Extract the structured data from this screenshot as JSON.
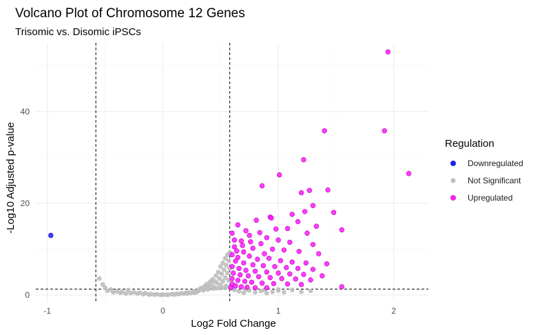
{
  "chart_data": {
    "type": "scatter",
    "title": "Volcano Plot of Chromosome 12 Genes",
    "subtitle": "Trisomic vs. Disomic iPSCs",
    "xlabel": "Log2 Fold Change",
    "ylabel": "-Log10 Adjusted p-value",
    "xlim": [
      -1.1,
      2.3
    ],
    "ylim": [
      -1.5,
      55
    ],
    "x_ticks": [
      -1,
      0,
      1,
      2
    ],
    "x_tick_labels": [
      "-1",
      "0",
      "1",
      "2"
    ],
    "y_ticks": [
      0,
      20,
      40
    ],
    "y_tick_labels": [
      "0",
      "20",
      "40"
    ],
    "grid": true,
    "thresholds": {
      "fold_change": [
        -0.58,
        0.58
      ],
      "neg_log10_padj": 1.3
    },
    "legend": {
      "title": "Regulation",
      "placement": "right",
      "entries": [
        {
          "label": "Downregulated",
          "color": "#1f1fff"
        },
        {
          "label": "Not Significant",
          "color": "#bebebe"
        },
        {
          "label": "Upregulated",
          "color": "#ff1aff"
        }
      ]
    },
    "series": [
      {
        "name": "Downregulated",
        "color": "#1f1fff",
        "points": [
          [
            -0.97,
            13.0
          ]
        ]
      },
      {
        "name": "Not Significant",
        "color": "#bebebe",
        "points": [
          [
            -0.55,
            3.6
          ],
          [
            -0.52,
            2.3
          ],
          [
            -0.5,
            1.6
          ],
          [
            -0.48,
            0.9
          ],
          [
            -0.45,
            1.2
          ],
          [
            -0.43,
            0.6
          ],
          [
            -0.4,
            0.8
          ],
          [
            -0.37,
            0.5
          ],
          [
            -0.35,
            0.7
          ],
          [
            -0.32,
            0.3
          ],
          [
            -0.3,
            1.1
          ],
          [
            -0.28,
            0.4
          ],
          [
            -0.25,
            0.6
          ],
          [
            -0.22,
            0.3
          ],
          [
            -0.2,
            0.5
          ],
          [
            -0.17,
            0.2
          ],
          [
            -0.15,
            0.4
          ],
          [
            -0.12,
            0.1
          ],
          [
            -0.1,
            0.2
          ],
          [
            -0.07,
            0.1
          ],
          [
            -0.05,
            0.15
          ],
          [
            -0.02,
            0.05
          ],
          [
            0.0,
            0.1
          ],
          [
            0.03,
            0.05
          ],
          [
            0.05,
            0.1
          ],
          [
            0.08,
            0.2
          ],
          [
            0.1,
            0.1
          ],
          [
            0.12,
            0.3
          ],
          [
            0.14,
            0.2
          ],
          [
            0.16,
            0.4
          ],
          [
            0.18,
            0.3
          ],
          [
            0.2,
            0.5
          ],
          [
            0.22,
            0.6
          ],
          [
            0.24,
            0.4
          ],
          [
            0.26,
            0.8
          ],
          [
            0.28,
            0.7
          ],
          [
            0.3,
            1.1
          ],
          [
            0.31,
            0.9
          ],
          [
            0.33,
            1.5
          ],
          [
            0.34,
            1.3
          ],
          [
            0.36,
            1.9
          ],
          [
            0.37,
            1.6
          ],
          [
            0.38,
            2.4
          ],
          [
            0.4,
            2.0
          ],
          [
            0.41,
            2.9
          ],
          [
            0.42,
            2.5
          ],
          [
            0.43,
            3.4
          ],
          [
            0.44,
            1.8
          ],
          [
            0.45,
            3.0
          ],
          [
            0.46,
            4.2
          ],
          [
            0.47,
            2.6
          ],
          [
            0.48,
            5.0
          ],
          [
            0.49,
            3.6
          ],
          [
            0.5,
            6.2
          ],
          [
            0.5,
            2.2
          ],
          [
            0.51,
            4.6
          ],
          [
            0.52,
            7.0
          ],
          [
            0.52,
            3.0
          ],
          [
            0.53,
            5.5
          ],
          [
            0.54,
            8.0
          ],
          [
            0.54,
            3.8
          ],
          [
            0.55,
            6.5
          ],
          [
            0.55,
            2.0
          ],
          [
            0.56,
            8.8
          ],
          [
            0.56,
            4.8
          ],
          [
            0.57,
            7.5
          ],
          [
            0.57,
            3.2
          ],
          [
            0.58,
            9.2
          ],
          [
            0.58,
            5.8
          ],
          [
            0.58,
            1.6
          ],
          [
            0.35,
            1.0
          ],
          [
            0.39,
            1.2
          ],
          [
            0.44,
            1.4
          ],
          [
            0.47,
            1.5
          ],
          [
            0.5,
            1.5
          ],
          [
            0.53,
            1.6
          ],
          [
            0.4,
            1.6
          ],
          [
            0.27,
            0.5
          ],
          [
            0.21,
            0.3
          ],
          [
            0.29,
            0.6
          ],
          [
            0.62,
            1.1
          ],
          [
            0.66,
            0.8
          ],
          [
            0.7,
            0.5
          ],
          [
            0.75,
            1.0
          ],
          [
            0.8,
            0.6
          ],
          [
            0.85,
            0.9
          ],
          [
            0.9,
            0.4
          ],
          [
            0.95,
            0.7
          ],
          [
            1.0,
            1.0
          ],
          [
            1.05,
            0.6
          ],
          [
            1.12,
            1.1
          ],
          [
            1.2,
            0.7
          ],
          [
            1.28,
            0.9
          ],
          [
            1.0,
            1.2
          ],
          [
            0.88,
            1.1
          ],
          [
            0.72,
            1.2
          ]
        ]
      },
      {
        "name": "Upregulated",
        "color": "#ff1aff",
        "points": [
          [
            1.95,
            53.0
          ],
          [
            1.4,
            35.8
          ],
          [
            1.92,
            35.8
          ],
          [
            1.22,
            29.5
          ],
          [
            1.01,
            26.2
          ],
          [
            2.13,
            26.5
          ],
          [
            1.27,
            22.8
          ],
          [
            1.2,
            22.3
          ],
          [
            0.86,
            23.8
          ],
          [
            1.43,
            22.9
          ],
          [
            1.3,
            19.5
          ],
          [
            1.48,
            18.0
          ],
          [
            1.23,
            18.2
          ],
          [
            1.12,
            17.6
          ],
          [
            0.93,
            17.0
          ],
          [
            0.94,
            16.8
          ],
          [
            0.81,
            16.3
          ],
          [
            1.55,
            14.2
          ],
          [
            0.65,
            15.3
          ],
          [
            1.17,
            16.0
          ],
          [
            1.33,
            15.0
          ],
          [
            1.08,
            14.5
          ],
          [
            1.25,
            13.5
          ],
          [
            0.72,
            14.0
          ],
          [
            0.6,
            13.5
          ],
          [
            0.75,
            13.0
          ],
          [
            0.9,
            12.5
          ],
          [
            1.0,
            12.0
          ],
          [
            1.1,
            11.5
          ],
          [
            1.3,
            11.0
          ],
          [
            0.68,
            11.8
          ],
          [
            0.85,
            11.2
          ],
          [
            0.62,
            10.5
          ],
          [
            0.78,
            10.2
          ],
          [
            0.95,
            10.0
          ],
          [
            1.05,
            9.8
          ],
          [
            1.18,
            9.5
          ],
          [
            1.35,
            9.0
          ],
          [
            0.7,
            9.4
          ],
          [
            0.88,
            9.0
          ],
          [
            0.6,
            8.8
          ],
          [
            0.65,
            8.2
          ],
          [
            0.75,
            8.5
          ],
          [
            0.82,
            7.8
          ],
          [
            0.92,
            8.0
          ],
          [
            1.02,
            7.5
          ],
          [
            1.12,
            7.2
          ],
          [
            1.24,
            7.0
          ],
          [
            1.42,
            6.8
          ],
          [
            0.63,
            7.4
          ],
          [
            0.7,
            7.0
          ],
          [
            0.78,
            6.6
          ],
          [
            0.87,
            6.4
          ],
          [
            0.97,
            6.2
          ],
          [
            1.07,
            6.0
          ],
          [
            1.17,
            5.8
          ],
          [
            1.3,
            5.6
          ],
          [
            0.6,
            6.2
          ],
          [
            0.66,
            5.8
          ],
          [
            0.72,
            5.4
          ],
          [
            0.8,
            5.2
          ],
          [
            0.9,
            5.0
          ],
          [
            1.0,
            4.8
          ],
          [
            1.1,
            4.6
          ],
          [
            1.22,
            4.5
          ],
          [
            1.38,
            4.2
          ],
          [
            0.61,
            4.8
          ],
          [
            0.67,
            4.4
          ],
          [
            0.74,
            4.2
          ],
          [
            0.83,
            4.0
          ],
          [
            0.93,
            3.8
          ],
          [
            1.03,
            3.6
          ],
          [
            1.15,
            3.5
          ],
          [
            1.28,
            3.3
          ],
          [
            0.6,
            3.6
          ],
          [
            0.65,
            3.2
          ],
          [
            0.71,
            3.0
          ],
          [
            0.77,
            2.8
          ],
          [
            0.86,
            2.6
          ],
          [
            0.96,
            2.5
          ],
          [
            1.08,
            2.4
          ],
          [
            1.2,
            2.3
          ],
          [
            0.6,
            2.4
          ],
          [
            0.63,
            2.0
          ],
          [
            0.68,
            1.8
          ],
          [
            0.73,
            1.7
          ],
          [
            0.8,
            1.6
          ],
          [
            0.9,
            1.6
          ],
          [
            1.55,
            1.8
          ],
          [
            0.59,
            1.6
          ],
          [
            0.62,
            12.0
          ],
          [
            0.64,
            9.6
          ],
          [
            0.69,
            10.8
          ],
          [
            0.76,
            11.6
          ],
          [
            0.84,
            13.6
          ],
          [
            0.98,
            14.4
          ]
        ]
      }
    ]
  }
}
